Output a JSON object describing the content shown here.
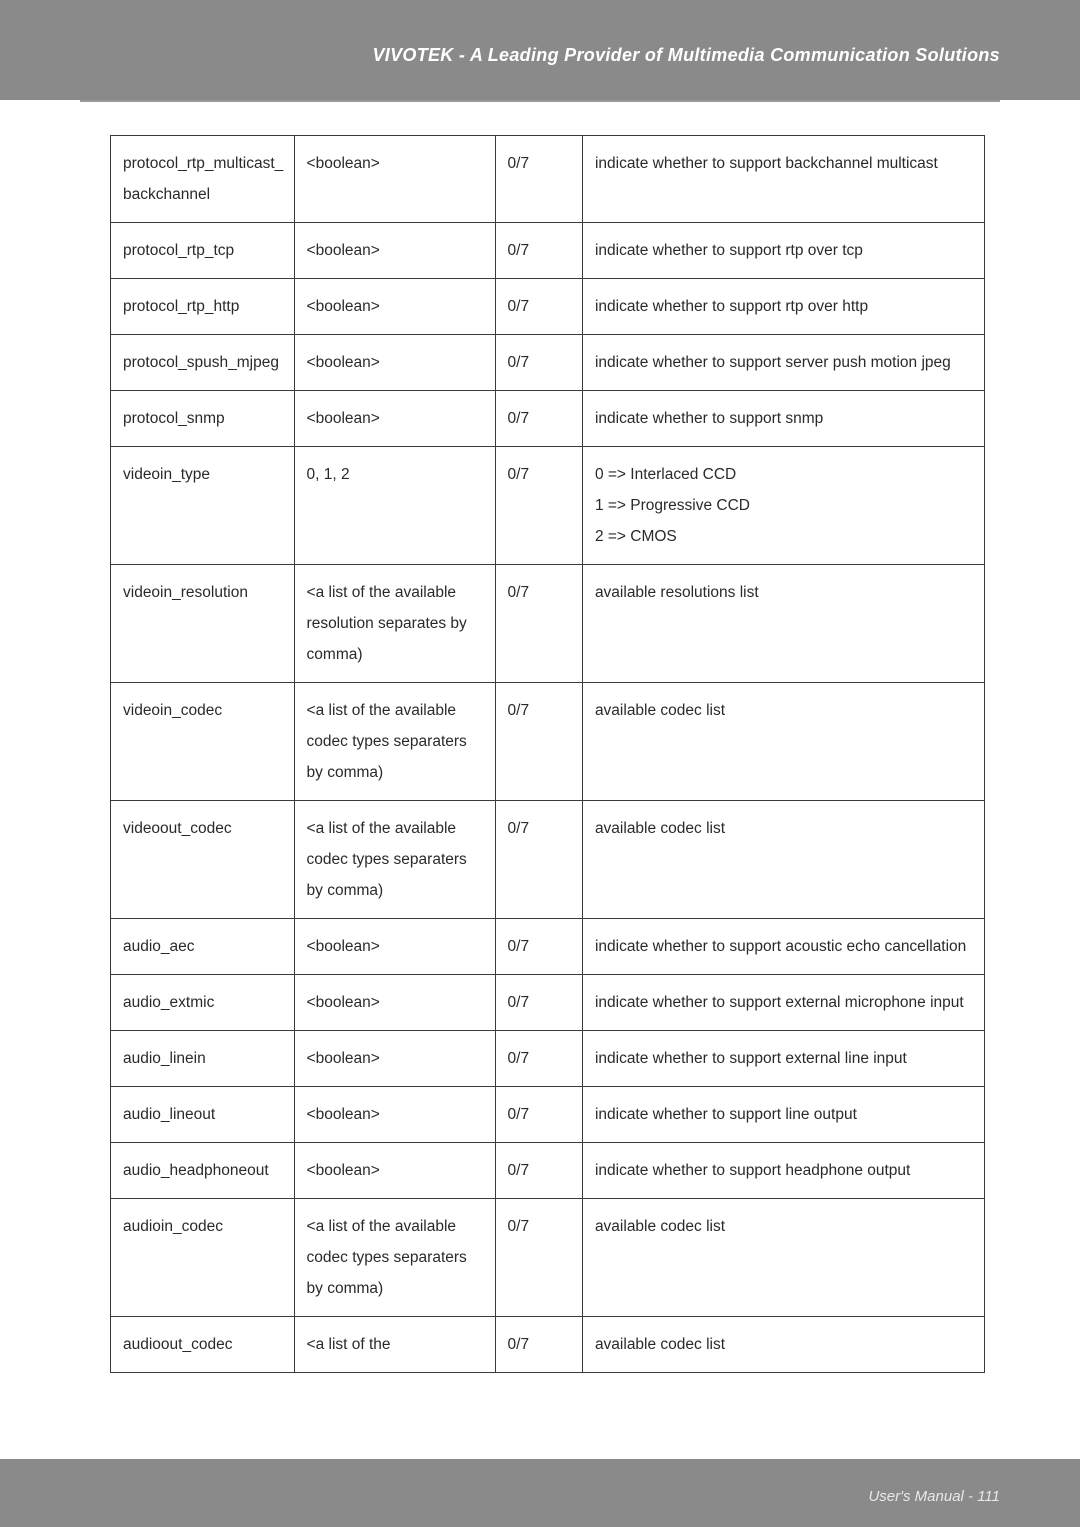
{
  "header": {
    "title": "VIVOTEK - A Leading Provider of Multimedia Communication Solutions",
    "band_color": "#8a8a8a",
    "title_color": "#ffffff"
  },
  "footer": {
    "text": "User's Manual - 111",
    "band_color": "#8a8a8a",
    "text_color": "#e8e8e8"
  },
  "table": {
    "border_color": "#3a3a3a",
    "text_color": "#2a2a2a",
    "font_size": 15.5,
    "rows": [
      {
        "c1": "protocol_rtp_multicast_\nbackchannel",
        "c2": "<boolean>",
        "c3": "0/7",
        "c4": "indicate whether to support backchannel multicast"
      },
      {
        "c1": "protocol_rtp_tcp",
        "c2": "<boolean>",
        "c3": "0/7",
        "c4": "indicate whether to support rtp over tcp"
      },
      {
        "c1": "protocol_rtp_http",
        "c2": "<boolean>",
        "c3": "0/7",
        "c4": "indicate whether to support rtp over http"
      },
      {
        "c1": "protocol_spush_mjpeg",
        "c2": "<boolean>",
        "c3": "0/7",
        "c4": "indicate whether to support server push motion jpeg"
      },
      {
        "c1": "protocol_snmp",
        "c2": "<boolean>",
        "c3": "0/7",
        "c4": "indicate whether to support snmp"
      },
      {
        "c1": "videoin_type",
        "c2": "0, 1, 2",
        "c3": "0/7",
        "c4": "0 => Interlaced CCD\n1 => Progressive CCD\n2 => CMOS"
      },
      {
        "c1": "videoin_resolution",
        "c2": "<a list of the available resolution separates by comma)",
        "c3": "0/7",
        "c4": "available resolutions list"
      },
      {
        "c1": "videoin_codec",
        "c2": "<a list of the available codec types separaters by comma)",
        "c3": "0/7",
        "c4": "available codec list"
      },
      {
        "c1": "videoout_codec",
        "c2": "<a list of the available codec types separaters by comma)",
        "c3": "0/7",
        "c4": "available codec list"
      },
      {
        "c1": "audio_aec",
        "c2": "<boolean>",
        "c3": "0/7",
        "c4": "indicate whether to support acoustic echo cancellation"
      },
      {
        "c1": "audio_extmic",
        "c2": "<boolean>",
        "c3": "0/7",
        "c4": "indicate whether to support external microphone input"
      },
      {
        "c1": "audio_linein",
        "c2": "<boolean>",
        "c3": "0/7",
        "c4": "indicate whether to support external line input"
      },
      {
        "c1": "audio_lineout",
        "c2": "<boolean>",
        "c3": "0/7",
        "c4": "indicate whether to support line output"
      },
      {
        "c1": "audio_headphoneout",
        "c2": "<boolean>",
        "c3": "0/7",
        "c4": "indicate whether to support headphone output"
      },
      {
        "c1": "audioin_codec",
        "c2": "<a list of the available codec types separaters by comma)",
        "c3": "0/7",
        "c4": "available codec list"
      },
      {
        "c1": "audioout_codec",
        "c2": "<a list of the",
        "c3": "0/7",
        "c4": "available codec list"
      }
    ]
  }
}
